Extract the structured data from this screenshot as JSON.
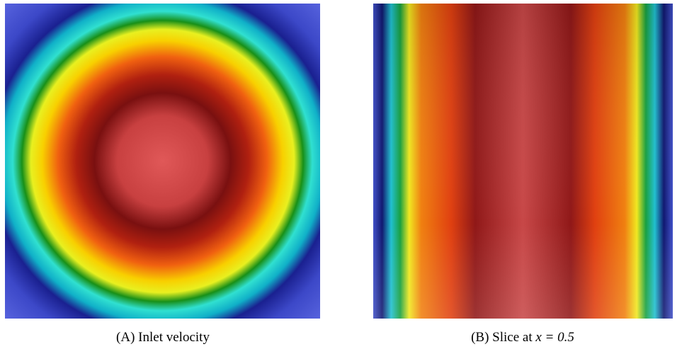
{
  "figures": [
    {
      "label": "(A)",
      "caption": "Inlet velocity"
    },
    {
      "label": "(B)",
      "caption": "Slice at",
      "math": "x = 0.5"
    }
  ]
}
